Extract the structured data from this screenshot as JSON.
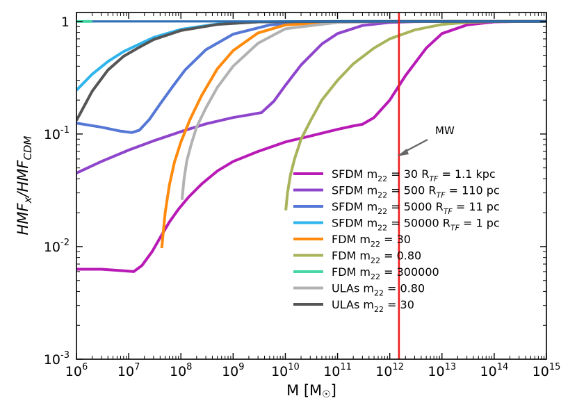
{
  "chart_data": {
    "type": "line",
    "xlabel": "M [M⊙]",
    "ylabel": "HMF_x/HMF_CDM",
    "xscale": "log",
    "yscale": "log",
    "xlim": [
      1000000.0,
      1000000000000000.0
    ],
    "ylim": [
      0.001,
      1.2
    ],
    "x_ticks": [
      {
        "value": 1000000.0,
        "base": "10",
        "exp": "6"
      },
      {
        "value": 10000000.0,
        "base": "10",
        "exp": "7"
      },
      {
        "value": 100000000.0,
        "base": "10",
        "exp": "8"
      },
      {
        "value": 1000000000.0,
        "base": "10",
        "exp": "9"
      },
      {
        "value": 10000000000.0,
        "base": "10",
        "exp": "10"
      },
      {
        "value": 100000000000.0,
        "base": "10",
        "exp": "11"
      },
      {
        "value": 1000000000000.0,
        "base": "10",
        "exp": "12"
      },
      {
        "value": 10000000000000.0,
        "base": "10",
        "exp": "13"
      },
      {
        "value": 100000000000000.0,
        "base": "10",
        "exp": "14"
      },
      {
        "value": 1000000000000000.0,
        "base": "10",
        "exp": "15"
      }
    ],
    "y_ticks": [
      {
        "value": 1,
        "base": "10",
        "exp": "0",
        "text": "1"
      },
      {
        "value": 0.1,
        "base": "10",
        "exp": "-1",
        "text": ""
      },
      {
        "value": 0.01,
        "base": "10",
        "exp": "-2",
        "text": ""
      },
      {
        "value": 0.001,
        "base": "10",
        "exp": "-3",
        "text": ""
      }
    ],
    "vline": {
      "x": 1500000000000.0,
      "color": "#ee1c1c",
      "label": "MW"
    },
    "series": [
      {
        "name": "SFDM m22 = 30 RTF = 1.1 kpc",
        "color": "#b81bb5",
        "legend": {
          "sys": "SFDM",
          "m": "m",
          "msub": "22",
          "eq": " = 30 ",
          "r": "R",
          "rsub": "TF",
          "rest": " = 1.1 kpc"
        },
        "x": [
          1000000.0,
          3000000.0,
          8000000.0,
          12500000.0,
          18000000.0,
          28000000.0,
          40000000.0,
          60000000.0,
          90000000.0,
          140000000.0,
          250000000.0,
          500000000.0,
          1000000000.0,
          3000000000.0,
          10000000000.0,
          30000000000.0,
          100000000000.0,
          200000000000.0,
          300000000000.0,
          500000000000.0,
          1000000000000.0,
          2000000000000.0,
          5000000000000.0,
          10000000000000.0,
          30000000000000.0,
          100000000000000.0,
          300000000000000.0,
          1000000000000000.0
        ],
        "y": [
          0.0063,
          0.0063,
          0.0061,
          0.006,
          0.0068,
          0.009,
          0.012,
          0.0165,
          0.0215,
          0.0275,
          0.036,
          0.047,
          0.057,
          0.07,
          0.085,
          0.096,
          0.11,
          0.118,
          0.122,
          0.14,
          0.2,
          0.33,
          0.58,
          0.78,
          0.93,
          0.99,
          1.0,
          1.0
        ]
      },
      {
        "name": "SFDM m22 = 500 RTF = 110 pc",
        "color": "#8e45cc",
        "legend": {
          "sys": "SFDM",
          "m": "m",
          "msub": "22",
          "eq": " = 500 ",
          "r": "R",
          "rsub": "TF",
          "rest": " = 110 pc"
        },
        "x": [
          1000000.0,
          3000000.0,
          10000000.0,
          30000000.0,
          100000000.0,
          300000000.0,
          1000000000.0,
          2000000000.0,
          3500000000.0,
          6000000000.0,
          10000000000.0,
          20000000000.0,
          50000000000.0,
          100000000000.0,
          300000000000.0,
          1000000000000.0,
          3000000000000.0,
          10000000000000.0,
          100000000000000.0,
          1000000000000000.0
        ],
        "y": [
          0.045,
          0.057,
          0.072,
          0.087,
          0.105,
          0.123,
          0.14,
          0.148,
          0.155,
          0.195,
          0.27,
          0.41,
          0.63,
          0.78,
          0.92,
          0.98,
          0.995,
          1.0,
          1.0,
          1.0
        ]
      },
      {
        "name": "SFDM m22 = 5000 RTF = 11 pc",
        "color": "#5577d6",
        "legend": {
          "sys": "SFDM",
          "m": "m",
          "msub": "22",
          "eq": " = 5000 ",
          "r": "R",
          "rsub": "TF",
          "rest": " = 11 pc"
        },
        "x": [
          1000000.0,
          3000000.0,
          7000000.0,
          11500000.0,
          16000000.0,
          25000000.0,
          40000000.0,
          70000000.0,
          120000000.0,
          300000000.0,
          1000000000.0,
          5000000000.0,
          50000000000.0,
          1000000000000.0,
          1000000000000000.0
        ],
        "y": [
          0.125,
          0.115,
          0.106,
          0.103,
          0.108,
          0.135,
          0.185,
          0.265,
          0.37,
          0.56,
          0.77,
          0.93,
          0.99,
          1.0,
          1.0
        ]
      },
      {
        "name": "SFDM m22 = 50000 RTF = 1 pc",
        "color": "#2fb5ec",
        "legend": {
          "sys": "SFDM",
          "m": "m",
          "msub": "22",
          "eq": " = 50000 ",
          "r": "R",
          "rsub": "TF",
          "rest": " = 1 pc"
        },
        "x": [
          1000000.0,
          2000000.0,
          4000000.0,
          8000000.0,
          15000000.0,
          30000000.0,
          100000000.0,
          500000000.0,
          3000000000.0,
          100000000000.0,
          1000000000000000.0
        ],
        "y": [
          0.245,
          0.34,
          0.44,
          0.54,
          0.62,
          0.72,
          0.85,
          0.95,
          0.99,
          1.0,
          1.0
        ]
      },
      {
        "name": "FDM m22 = 30",
        "color": "#ff8a0d",
        "legend": {
          "sys": "FDM",
          "m": "m",
          "msub": "22",
          "eq": " = 30",
          "r": "",
          "rsub": "",
          "rest": ""
        },
        "x": [
          43000000.0,
          46000000.0,
          50000000.0,
          60000000.0,
          75000000.0,
          100000000.0,
          150000000.0,
          250000000.0,
          500000000.0,
          1000000000.0,
          3000000000.0,
          10000000000.0,
          100000000000.0,
          1000000000000.0,
          1000000000000000.0
        ],
        "y": [
          0.0097,
          0.0135,
          0.02,
          0.035,
          0.056,
          0.085,
          0.135,
          0.22,
          0.38,
          0.55,
          0.79,
          0.93,
          0.99,
          1.0,
          1.0
        ]
      },
      {
        "name": "FDM m22 = 0.80",
        "color": "#a8b35a",
        "legend": {
          "sys": "FDM",
          "m": "m",
          "msub": "22",
          "eq": " = 0.80",
          "r": "",
          "rsub": "",
          "rest": ""
        },
        "x": [
          10200000000.0,
          11000000000.0,
          12500000000.0,
          15000000000.0,
          20000000000.0,
          30000000000.0,
          50000000000.0,
          100000000000.0,
          200000000000.0,
          500000000000.0,
          1000000000000.0,
          3000000000000.0,
          10000000000000.0,
          30000000000000.0,
          100000000000000.0,
          1000000000000000.0
        ],
        "y": [
          0.021,
          0.03,
          0.043,
          0.06,
          0.09,
          0.13,
          0.2,
          0.3,
          0.42,
          0.58,
          0.7,
          0.84,
          0.94,
          0.98,
          1.0,
          1.0
        ]
      },
      {
        "name": "FDM m22 = 300000",
        "color": "#48d6a8",
        "legend": {
          "sys": "FDM",
          "m": "m",
          "msub": "22",
          "eq": " = 300000",
          "r": "",
          "rsub": "",
          "rest": ""
        },
        "x": [
          1000000.0,
          2000000.0
        ],
        "y": [
          1.0,
          1.0
        ]
      },
      {
        "name": "ULAs m22 = 0.80",
        "color": "#b2b2b2",
        "legend": {
          "sys": "ULAs",
          "m": "m",
          "msub": "22",
          "eq": " = 0.80",
          "r": "",
          "rsub": "",
          "rest": ""
        },
        "x": [
          105000000.0,
          115000000.0,
          130000000.0,
          160000000.0,
          200000000.0,
          300000000.0,
          500000000.0,
          1000000000.0,
          3000000000.0,
          10000000000.0,
          100000000000.0,
          1000000000000.0,
          1000000000000000.0
        ],
        "y": [
          0.026,
          0.04,
          0.058,
          0.083,
          0.115,
          0.17,
          0.26,
          0.4,
          0.64,
          0.86,
          0.98,
          1.0,
          1.0
        ]
      },
      {
        "name": "ULAs m22 = 30",
        "color": "#555555",
        "legend": {
          "sys": "ULAs",
          "m": "m",
          "msub": "22",
          "eq": " = 30",
          "r": "",
          "rsub": "",
          "rest": ""
        },
        "x": [
          1000000.0,
          2000000.0,
          4000000.0,
          8000000.0,
          15000000.0,
          30000000.0,
          100000000.0,
          500000000.0,
          3000000000.0,
          100000000000.0,
          1000000000000000.0
        ],
        "y": [
          0.132,
          0.24,
          0.37,
          0.49,
          0.58,
          0.69,
          0.83,
          0.94,
          0.99,
          1.0,
          1.0
        ]
      },
      {
        "name": "CDM reference",
        "color": "#2d6fb3",
        "legend": null,
        "x": [
          2000000.0,
          1000000000000000.0
        ],
        "y": [
          1.0,
          1.0
        ]
      }
    ]
  }
}
